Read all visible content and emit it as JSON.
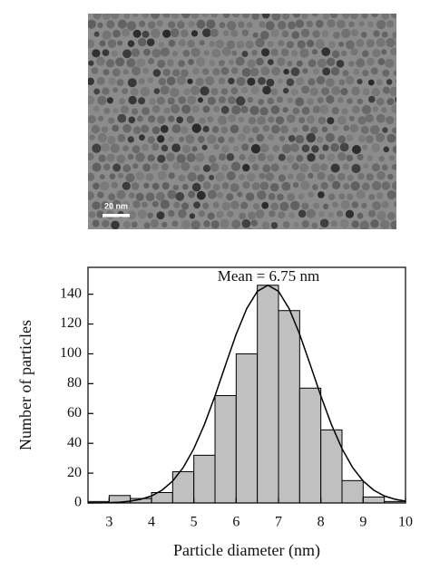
{
  "image": {
    "scale_bar_label": "20 nm"
  },
  "chart_data": {
    "type": "histogram",
    "annotation": "Mean = 6.75 nm",
    "x_label": "Particle diameter (nm)",
    "y_label": "Number of particles",
    "bins": [
      2.5,
      3,
      3.5,
      4,
      4.5,
      5,
      5.5,
      6,
      6.5,
      7,
      7.5,
      8,
      8.5,
      9,
      9.5,
      10
    ],
    "values": [
      1,
      5,
      3,
      7,
      21,
      32,
      72,
      100,
      146,
      129,
      77,
      49,
      15,
      4,
      1
    ],
    "color": "#c0c0c0",
    "fit": {
      "x": [
        2.5,
        2.75,
        3,
        3.25,
        3.5,
        3.75,
        4,
        4.25,
        4.5,
        4.75,
        5,
        5.25,
        5.5,
        5.75,
        6,
        6.25,
        6.5,
        6.75,
        7,
        7.25,
        7.5,
        7.75,
        8,
        8.25,
        8.5,
        8.75,
        9,
        9.25,
        9.5,
        9.75,
        10
      ],
      "values": [
        0.04,
        0.1,
        0.25,
        0.56,
        1.2,
        2.5,
        4.7,
        8.6,
        14.7,
        23.8,
        36.4,
        52.6,
        71.8,
        92.7,
        113.1,
        130.4,
        141.9,
        146,
        141.9,
        130.4,
        113.1,
        92.7,
        71.8,
        52.6,
        36.4,
        23.8,
        14.7,
        8.6,
        4.7,
        2.5,
        1.2
      ],
      "color": "#000000"
    },
    "xlim": [
      2.5,
      10
    ],
    "ylim": [
      0,
      158
    ],
    "xticks": [
      3,
      4,
      5,
      6,
      7,
      8,
      9,
      10
    ],
    "yticks": [
      0,
      20,
      40,
      60,
      80,
      100,
      120,
      140
    ]
  }
}
